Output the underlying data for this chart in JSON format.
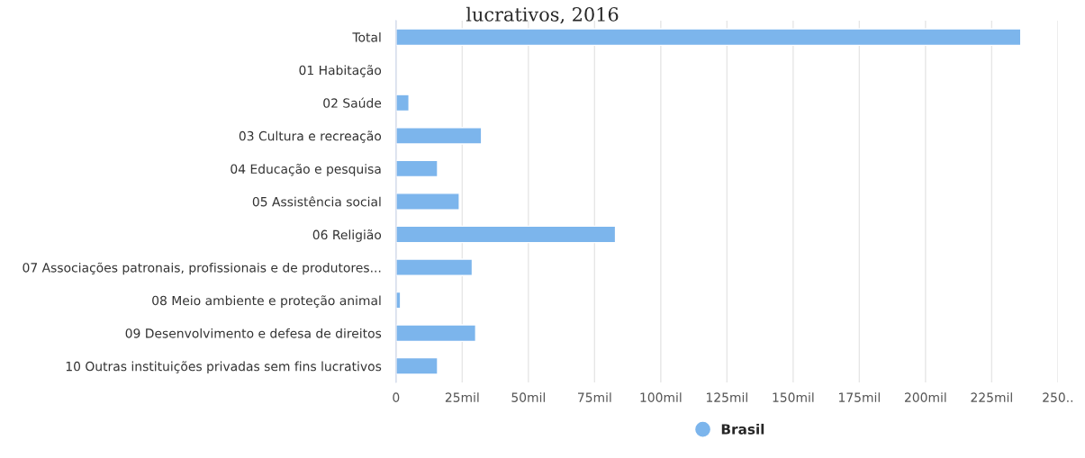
{
  "chart_data": {
    "type": "bar",
    "orientation": "horizontal",
    "title": "lucrativos, 2016",
    "categories": [
      "Total",
      "01 Habitação",
      "02 Saúde",
      "03 Cultura e recreação",
      "04 Educação e pesquisa",
      "05 Assistência social",
      "06 Religião",
      "07 Associações patronais, profissionais e de produtores...",
      "08 Meio ambiente e proteção animal",
      "09 Desenvolvimento e defesa de direitos",
      "10 Outras instituições privadas sem fins lucrativos"
    ],
    "series": [
      {
        "name": "Brasil",
        "color": "#7cb5ec",
        "values": [
          236,
          null,
          4.9,
          32.3,
          15.7,
          23.9,
          82.9,
          28.8,
          1.7,
          30.1,
          15.7
        ]
      }
    ],
    "xlim": [
      0,
      250
    ],
    "xticks": [
      0,
      {
        "value": 25,
        "label": "25mil"
      },
      {
        "value": 50,
        "label": "50mil"
      },
      {
        "value": 75,
        "label": "75mil"
      },
      {
        "value": 100,
        "label": "100mil"
      },
      {
        "value": 125,
        "label": "125mil"
      },
      {
        "value": 150,
        "label": "150mil"
      },
      {
        "value": 175,
        "label": "175mil"
      },
      {
        "value": 200,
        "label": "200mil"
      },
      {
        "value": 225,
        "label": "225mil"
      },
      {
        "value": 250,
        "label": "250.."
      }
    ],
    "grid": "x",
    "legend": "bottom",
    "marker": "circle"
  }
}
